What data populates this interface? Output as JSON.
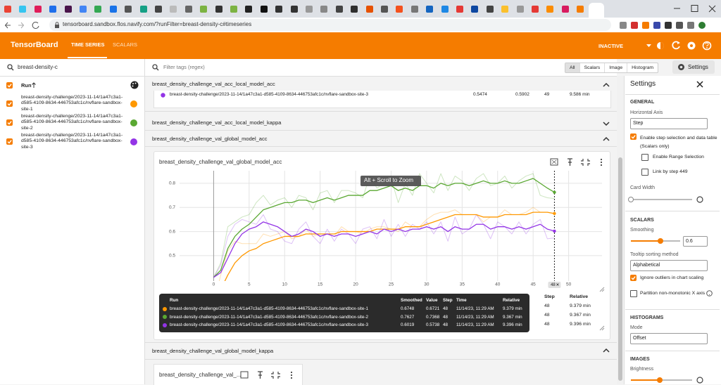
{
  "browser": {
    "url": "tensorboard.sandbox.flos.navify.com/?runFilter=breast-density-c#timeseries"
  },
  "header": {
    "title": "TensorBoard",
    "tabs": [
      "TIME SERIES",
      "SCALARS"
    ],
    "status": "INACTIVE"
  },
  "sidebar": {
    "search": "breast-density-c",
    "column": "Run"
  },
  "toolbar": {
    "filter_placeholder": "Filter tags (regex)",
    "filters": [
      "All",
      "Scalars",
      "Image",
      "Histogram"
    ],
    "settings_button": "Settings"
  },
  "sections": [
    {
      "title": "breast_density_challenge_val_acc_local_model_acc",
      "row": {
        "run": "breast-density-challenge/2023-11-14/1a47c3a1-d585-4109-8634-446753afc1c/nvflare-sandbox-site-3",
        "values": [
          0.5474,
          0.5902,
          49
        ],
        "relative": "9.586 min"
      }
    },
    {
      "title": "breast_density_challenge_val_acc_local_model_kappa"
    },
    {
      "title": "breast_density_challenge_val_global_model_acc"
    },
    {
      "title": "breast_density_challenge_val_global_model_kappa"
    },
    {
      "title": "breast_density_challenge_val_..."
    }
  ],
  "chart_data": {
    "type": "line",
    "title": "breast_density_challenge_val_global_model_acc",
    "hint": "Alt + Scroll to Zoom",
    "x": [
      0,
      1,
      2,
      3,
      4,
      5,
      6,
      7,
      8,
      9,
      10,
      11,
      12,
      13,
      14,
      15,
      16,
      17,
      18,
      19,
      20,
      21,
      22,
      23,
      24,
      25,
      26,
      27,
      28,
      29,
      30,
      31,
      32,
      33,
      34,
      35,
      36,
      37,
      38,
      39,
      40,
      41,
      42,
      43,
      44,
      45,
      46,
      47,
      48
    ],
    "xlim": [
      -4.8,
      54.7
    ],
    "xticks": [
      0,
      5,
      10,
      15,
      20,
      25,
      30,
      35,
      40,
      45,
      50
    ],
    "ylim": [
      0.395,
      0.852
    ],
    "yticks": [
      0.5,
      0.6,
      0.7,
      0.8
    ],
    "grid": true,
    "series": [
      {
        "name": "breast-density-challenge/2023-11-14/1a47c3a1-d585-4109-8634-446753afc1c/nvflare-sandbox-site-1",
        "color": "#ff9800",
        "smoothed": [
          0.3,
          0.36,
          0.42,
          0.47,
          0.5,
          0.52,
          0.53,
          0.55,
          0.56,
          0.57,
          0.58,
          0.58,
          0.58,
          0.59,
          0.59,
          0.59,
          0.59,
          0.59,
          0.6,
          0.6,
          0.6,
          0.6,
          0.6,
          0.61,
          0.61,
          0.61,
          0.61,
          0.62,
          0.62,
          0.62,
          0.63,
          0.64,
          0.65,
          0.66,
          0.67,
          0.67,
          0.67,
          0.67,
          0.66,
          0.66,
          0.66,
          0.67,
          0.67,
          0.67,
          0.67,
          0.68,
          0.68,
          0.68,
          0.6748
        ],
        "values": [
          0.3,
          0.42,
          0.52,
          0.56,
          0.55,
          0.55,
          0.55,
          0.59,
          0.58,
          0.59,
          0.6,
          0.57,
          0.58,
          0.61,
          0.58,
          0.59,
          0.59,
          0.58,
          0.62,
          0.6,
          0.6,
          0.59,
          0.61,
          0.62,
          0.62,
          0.61,
          0.6,
          0.64,
          0.62,
          0.62,
          0.65,
          0.67,
          0.68,
          0.68,
          0.69,
          0.67,
          0.67,
          0.67,
          0.64,
          0.66,
          0.66,
          0.69,
          0.67,
          0.67,
          0.68,
          0.7,
          0.68,
          0.68,
          0.6721
        ]
      },
      {
        "name": "breast-density-challenge/2023-11-14/1a47c3a1-d585-4109-8634-446753afc1c/nvflare-sandbox-site-2",
        "color": "#5aa832",
        "smoothed": [
          0.41,
          0.44,
          0.53,
          0.58,
          0.61,
          0.63,
          0.66,
          0.69,
          0.7,
          0.71,
          0.72,
          0.72,
          0.73,
          0.73,
          0.72,
          0.73,
          0.74,
          0.73,
          0.74,
          0.75,
          0.75,
          0.75,
          0.77,
          0.77,
          0.78,
          0.79,
          0.77,
          0.78,
          0.77,
          0.79,
          0.79,
          0.78,
          0.8,
          0.79,
          0.8,
          0.8,
          0.79,
          0.8,
          0.81,
          0.8,
          0.8,
          0.81,
          0.8,
          0.8,
          0.81,
          0.82,
          0.8,
          0.78,
          0.7627
        ],
        "values": [
          0.41,
          0.47,
          0.62,
          0.64,
          0.66,
          0.67,
          0.72,
          0.75,
          0.71,
          0.73,
          0.74,
          0.7,
          0.75,
          0.74,
          0.69,
          0.76,
          0.77,
          0.72,
          0.77,
          0.77,
          0.76,
          0.74,
          0.83,
          0.78,
          0.8,
          0.82,
          0.72,
          0.8,
          0.75,
          0.84,
          0.8,
          0.76,
          0.84,
          0.77,
          0.83,
          0.81,
          0.77,
          0.82,
          0.84,
          0.79,
          0.8,
          0.83,
          0.78,
          0.81,
          0.83,
          0.84,
          0.75,
          0.74,
          0.7368
        ]
      },
      {
        "name": "breast-density-challenge/2023-11-14/1a47c3a1-d585-4109-8634-446753afc1c/nvflare-sandbox-site-3",
        "color": "#9334e6",
        "smoothed": [
          0.41,
          0.43,
          0.49,
          0.55,
          0.59,
          0.61,
          0.62,
          0.64,
          0.63,
          0.62,
          0.6,
          0.58,
          0.59,
          0.61,
          0.6,
          0.58,
          0.59,
          0.58,
          0.59,
          0.59,
          0.58,
          0.59,
          0.6,
          0.59,
          0.61,
          0.6,
          0.61,
          0.6,
          0.61,
          0.61,
          0.62,
          0.61,
          0.62,
          0.6,
          0.62,
          0.61,
          0.61,
          0.63,
          0.63,
          0.61,
          0.62,
          0.62,
          0.61,
          0.62,
          0.61,
          0.62,
          0.63,
          0.61,
          0.6019
        ],
        "values": [
          0.41,
          0.46,
          0.58,
          0.63,
          0.65,
          0.64,
          0.63,
          0.67,
          0.61,
          0.6,
          0.56,
          0.55,
          0.61,
          0.64,
          0.58,
          0.55,
          0.61,
          0.56,
          0.61,
          0.59,
          0.55,
          0.61,
          0.62,
          0.57,
          0.65,
          0.58,
          0.63,
          0.58,
          0.63,
          0.61,
          0.64,
          0.59,
          0.64,
          0.56,
          0.66,
          0.59,
          0.61,
          0.67,
          0.63,
          0.57,
          0.64,
          0.62,
          0.59,
          0.64,
          0.59,
          0.63,
          0.65,
          0.57,
          0.5738
        ]
      }
    ],
    "tooltip": {
      "headers": [
        "Run",
        "Smoothed",
        "Value",
        "Step",
        "Time",
        "Relative"
      ],
      "rows": [
        {
          "time": "11/14/23, 11:29 AM",
          "relative": "9.379 min"
        },
        {
          "time": "11/14/23, 11:29 AM",
          "relative": "9.367 min"
        },
        {
          "time": "11/14/23, 11:29 AM",
          "relative": "9.396 min"
        }
      ]
    },
    "data_table": {
      "headers": [
        "Step",
        "Relative"
      ]
    }
  },
  "settings": {
    "title": "Settings",
    "general": "GENERAL",
    "horizontal_axis": "Horizontal Axis",
    "axis_value": "Step",
    "step_selection": "Enable step selection and data table",
    "scalars_only": "(Scalars only)",
    "range_selection": "Enable Range Selection",
    "link_by_step": "Link by step 449",
    "card_width": "Card Width",
    "scalars": "SCALARS",
    "smoothing": {
      "label": "Smoothing",
      "value": 0.6
    },
    "tooltip_sort": "Tooltip sorting method",
    "tooltip_sort_value": "Alphabetical",
    "ignore_outliers": "Ignore outliers in chart scaling",
    "partition": "Partition non-monotonic X axis",
    "histograms": "HISTOGRAMS",
    "mode": "Mode",
    "mode_value": "Offset",
    "images": "IMAGES",
    "brightness": "Brightness"
  }
}
